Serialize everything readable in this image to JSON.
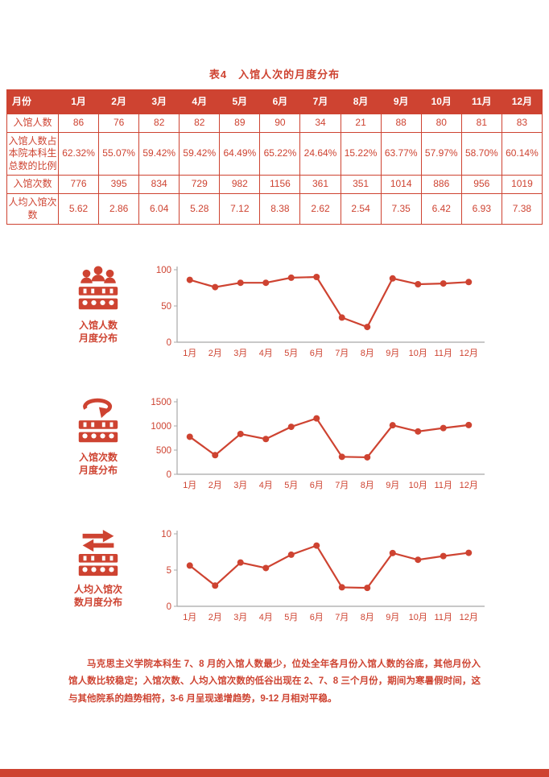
{
  "colors": {
    "primary": "#ce4331",
    "axis": "#a8a8a8"
  },
  "title": "表4　入馆人次的月度分布",
  "table": {
    "header": [
      "月份",
      "1月",
      "2月",
      "3月",
      "4月",
      "5月",
      "6月",
      "7月",
      "8月",
      "9月",
      "10月",
      "11月",
      "12月"
    ],
    "rows": [
      {
        "label": "入馆人数",
        "values": [
          "86",
          "76",
          "82",
          "82",
          "89",
          "90",
          "34",
          "21",
          "88",
          "80",
          "81",
          "83"
        ]
      },
      {
        "label": "入馆人数占本院本科生总数的比例",
        "values": [
          "62.32%",
          "55.07%",
          "59.42%",
          "59.42%",
          "64.49%",
          "65.22%",
          "24.64%",
          "15.22%",
          "63.77%",
          "57.97%",
          "58.70%",
          "60.14%"
        ]
      },
      {
        "label": "入馆次数",
        "values": [
          "776",
          "395",
          "834",
          "729",
          "982",
          "1156",
          "361",
          "351",
          "1014",
          "886",
          "956",
          "1019"
        ]
      },
      {
        "label": "人均入馆次数",
        "values": [
          "5.62",
          "2.86",
          "6.04",
          "5.28",
          "7.12",
          "8.38",
          "2.62",
          "2.54",
          "7.35",
          "6.42",
          "6.93",
          "7.38"
        ]
      }
    ]
  },
  "chart_data": [
    {
      "id": "visitors",
      "type": "line",
      "title": "入馆人数月度分布",
      "caption": "入馆人数\n月度分布",
      "categories": [
        "1月",
        "2月",
        "3月",
        "4月",
        "5月",
        "6月",
        "7月",
        "8月",
        "9月",
        "10月",
        "11月",
        "12月"
      ],
      "values": [
        86,
        76,
        82,
        82,
        89,
        90,
        34,
        21,
        88,
        80,
        81,
        83
      ],
      "ylim": [
        0,
        100
      ],
      "yticks": [
        0,
        50,
        100
      ],
      "grid": false,
      "legend": "none"
    },
    {
      "id": "visits",
      "type": "line",
      "title": "入馆次数月度分布",
      "caption": "入馆次数\n月度分布",
      "categories": [
        "1月",
        "2月",
        "3月",
        "4月",
        "5月",
        "6月",
        "7月",
        "8月",
        "9月",
        "10月",
        "11月",
        "12月"
      ],
      "values": [
        776,
        395,
        834,
        729,
        982,
        1156,
        361,
        351,
        1014,
        886,
        956,
        1019
      ],
      "ylim": [
        0,
        1500
      ],
      "yticks": [
        0,
        500,
        1000,
        1500
      ],
      "grid": false,
      "legend": "none"
    },
    {
      "id": "avg-visits",
      "type": "line",
      "title": "人均入馆次数月度分布",
      "caption": "人均入馆次\n数月度分布",
      "categories": [
        "1月",
        "2月",
        "3月",
        "4月",
        "5月",
        "6月",
        "7月",
        "8月",
        "9月",
        "10月",
        "11月",
        "12月"
      ],
      "values": [
        5.62,
        2.86,
        6.04,
        5.28,
        7.12,
        8.38,
        2.62,
        2.54,
        7.35,
        6.42,
        6.93,
        7.38
      ],
      "ylim": [
        0,
        10
      ],
      "yticks": [
        0,
        5,
        10
      ],
      "grid": false,
      "legend": "none"
    }
  ],
  "footer": {
    "text": "马克思主义学院本科生 7、8 月的入馆人数最少，位处全年各月份入馆人数的谷底，其他月份入馆人数比较稳定；入馆次数、人均入馆次数的低谷出现在 2、7、8 三个月份，期间为寒暑假时间，这与其他院系的趋势相符，3-6 月呈现递增趋势，9-12 月相对平稳。"
  }
}
